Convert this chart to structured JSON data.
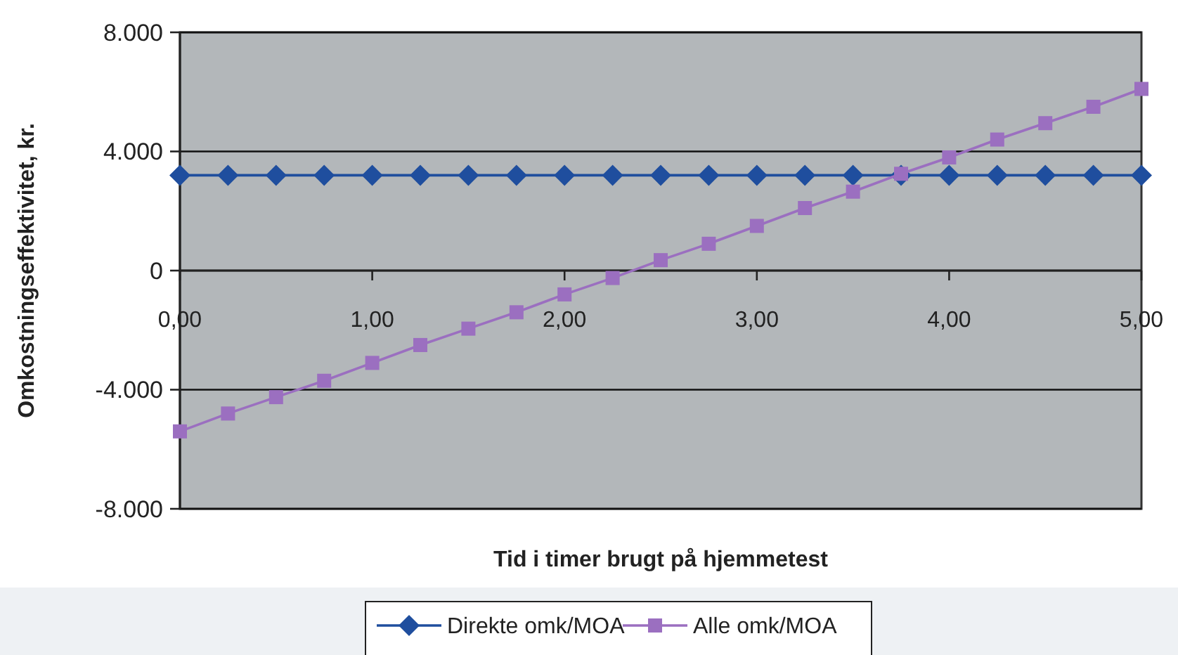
{
  "chart_data": {
    "type": "line",
    "xlabel": "Tid i timer brugt på hjemmetest",
    "ylabel": "Omkostningseffektivitet, kr.",
    "x": [
      0,
      0.25,
      0.5,
      0.75,
      1,
      1.25,
      1.5,
      1.75,
      2,
      2.25,
      2.5,
      2.75,
      3,
      3.25,
      3.5,
      3.75,
      4,
      4.25,
      4.5,
      4.75,
      5
    ],
    "series": [
      {
        "name": "Direkte omk/MOA",
        "color": "#1f4e9e",
        "marker": "diamond",
        "values": [
          3200,
          3200,
          3200,
          3200,
          3200,
          3200,
          3200,
          3200,
          3200,
          3200,
          3200,
          3200,
          3200,
          3200,
          3200,
          3200,
          3200,
          3200,
          3200,
          3200,
          3200
        ]
      },
      {
        "name": "Alle omk/MOA",
        "color": "#9b6fc0",
        "marker": "square",
        "values": [
          -5400,
          -4800,
          -4250,
          -3700,
          -3100,
          -2500,
          -1950,
          -1400,
          -800,
          -250,
          350,
          900,
          1500,
          2100,
          2650,
          3250,
          3800,
          4400,
          4950,
          5500,
          6100
        ]
      }
    ],
    "xlim": [
      0,
      5
    ],
    "xticks": [
      {
        "value": 0,
        "label": "0,00"
      },
      {
        "value": 1,
        "label": "1,00"
      },
      {
        "value": 2,
        "label": "2,00"
      },
      {
        "value": 3,
        "label": "3,00"
      },
      {
        "value": 4,
        "label": "4,00"
      },
      {
        "value": 5,
        "label": "5,00"
      }
    ],
    "ylim": [
      -8000,
      8000
    ],
    "yticks": [
      {
        "value": -8000,
        "label": "-8.000"
      },
      {
        "value": -4000,
        "label": "-4.000"
      },
      {
        "value": 0,
        "label": "0"
      },
      {
        "value": 4000,
        "label": "4.000"
      },
      {
        "value": 8000,
        "label": "8.000"
      }
    ],
    "grid": "y",
    "legend": "bottom"
  }
}
